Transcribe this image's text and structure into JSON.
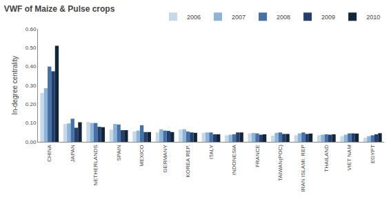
{
  "chart_data": {
    "type": "bar",
    "title": "VWF of Maize & Pulse crops",
    "ylabel": "In-degree centrality",
    "categories": [
      "CHINA",
      "JAPAN",
      "NETHERLANDS",
      "SPAIN",
      "MEXICO",
      "GERMANY",
      "KOREA REP.",
      "ITALY",
      "INDONESIA",
      "FRANCE",
      "TAIWAN(POC)",
      "IRAN ISLAMI. REP",
      "THAILAND",
      "VIET NAM",
      "EGYPT"
    ],
    "series": [
      {
        "name": "2006",
        "color": "#c5d9e8",
        "values": [
          0.26,
          0.095,
          0.105,
          0.065,
          0.055,
          0.05,
          0.065,
          0.048,
          0.035,
          0.045,
          0.033,
          0.035,
          0.035,
          0.03,
          0.022
        ]
      },
      {
        "name": "2007",
        "color": "#8db4d6",
        "values": [
          0.285,
          0.098,
          0.1,
          0.095,
          0.06,
          0.067,
          0.067,
          0.05,
          0.038,
          0.047,
          0.048,
          0.045,
          0.038,
          0.038,
          0.03
        ]
      },
      {
        "name": "2008",
        "color": "#4472a8",
        "values": [
          0.4,
          0.123,
          0.1,
          0.092,
          0.088,
          0.06,
          0.055,
          0.05,
          0.04,
          0.045,
          0.05,
          0.05,
          0.04,
          0.045,
          0.035
        ]
      },
      {
        "name": "2009",
        "color": "#243f6b",
        "values": [
          0.375,
          0.075,
          0.08,
          0.062,
          0.052,
          0.058,
          0.05,
          0.04,
          0.05,
          0.038,
          0.042,
          0.042,
          0.038,
          0.045,
          0.04
        ]
      },
      {
        "name": "2010",
        "color": "#12263a",
        "values": [
          0.51,
          0.104,
          0.078,
          0.062,
          0.052,
          0.052,
          0.048,
          0.04,
          0.05,
          0.04,
          0.042,
          0.044,
          0.04,
          0.044,
          0.046
        ]
      }
    ],
    "ylim": [
      0.0,
      0.6
    ],
    "yticks": [
      {
        "value": 0.0,
        "label": "0.00"
      },
      {
        "value": 0.1,
        "label": "0.10"
      },
      {
        "value": 0.2,
        "label": "0.20"
      },
      {
        "value": 0.3,
        "label": "0.30"
      },
      {
        "value": 0.4,
        "label": "0.40"
      },
      {
        "value": 0.5,
        "label": "0.50"
      },
      {
        "value": 0.6,
        "label": "0.60"
      }
    ],
    "grid": false,
    "legend": "upper right"
  }
}
